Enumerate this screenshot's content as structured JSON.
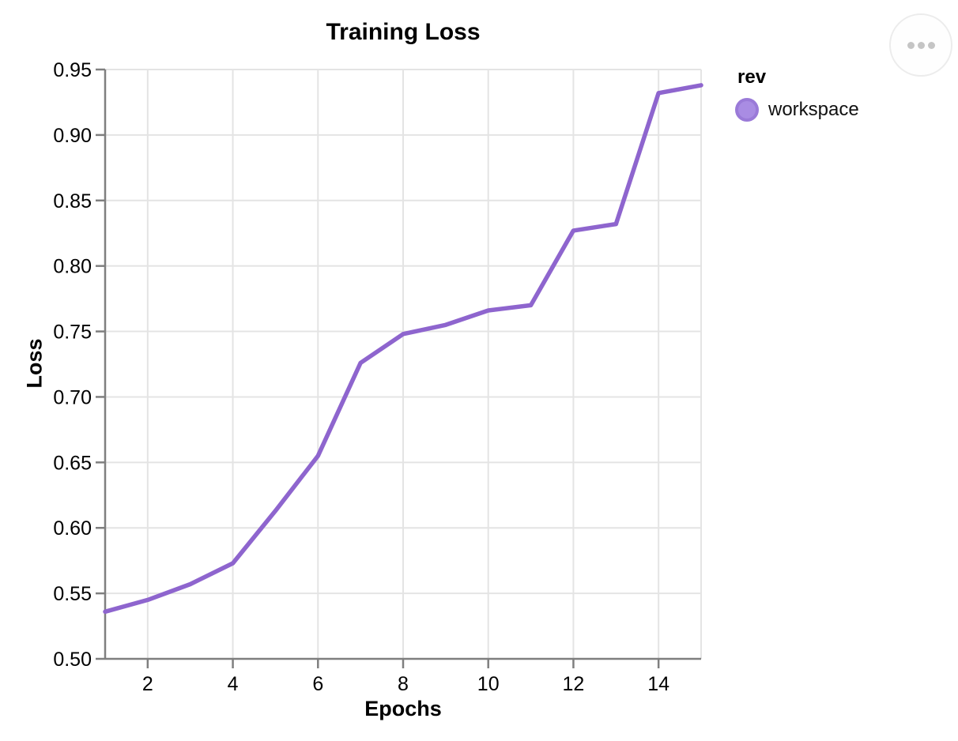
{
  "panel": {
    "menu_button": {
      "icon": "ellipsis"
    }
  },
  "chart_data": {
    "type": "line",
    "title": "Training Loss",
    "xlabel": "Epochs",
    "ylabel": "Loss",
    "x": [
      1,
      2,
      3,
      4,
      5,
      6,
      7,
      8,
      9,
      10,
      11,
      12,
      13,
      14,
      15
    ],
    "series": [
      {
        "name": "workspace",
        "color": "#8e65ce",
        "values": [
          0.536,
          0.545,
          0.557,
          0.573,
          0.613,
          0.655,
          0.726,
          0.748,
          0.755,
          0.766,
          0.77,
          0.827,
          0.832,
          0.932,
          0.938
        ]
      }
    ],
    "xlim": [
      1,
      15
    ],
    "ylim": [
      0.5,
      0.95
    ],
    "xticks": {
      "values": [
        2,
        4,
        6,
        8,
        10,
        12,
        14
      ],
      "labels": [
        "2",
        "4",
        "6",
        "8",
        "10",
        "12",
        "14"
      ]
    },
    "yticks": {
      "values": [
        0.5,
        0.55,
        0.6,
        0.65,
        0.7,
        0.75,
        0.8,
        0.85,
        0.9,
        0.95
      ],
      "labels": [
        "0.50",
        "0.55",
        "0.60",
        "0.65",
        "0.70",
        "0.75",
        "0.80",
        "0.85",
        "0.90",
        "0.95"
      ]
    },
    "grid": true,
    "legend": {
      "title": "rev",
      "position": "right",
      "items": [
        {
          "label": "workspace",
          "fill": "#a98ce3",
          "stroke": "#9a7ad8"
        }
      ]
    },
    "style": {
      "grid_color": "#e4e4e4",
      "axis_color": "#7f7f7f",
      "line_width": 5.5
    }
  }
}
